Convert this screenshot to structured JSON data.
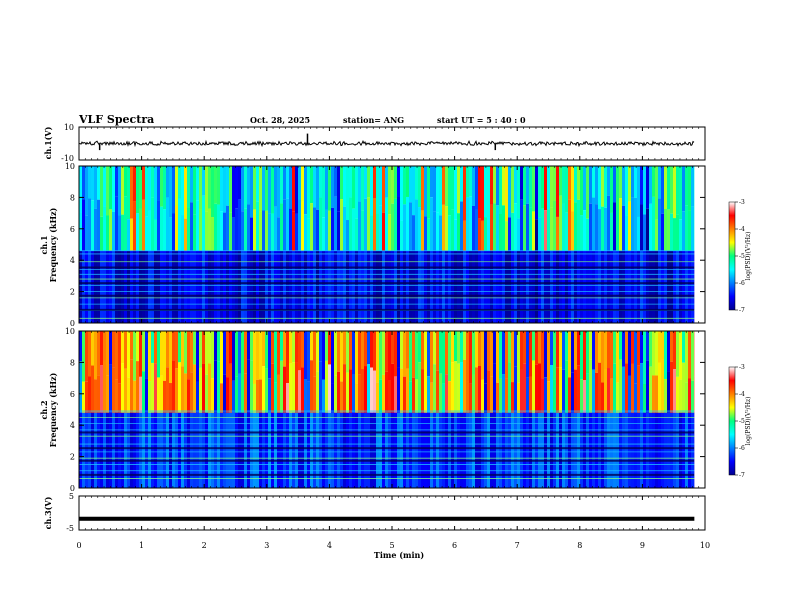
{
  "header": {
    "title": "VLF Spectra",
    "date": "Oct. 28, 2025",
    "station": "station= ANG",
    "start_ut": "start  UT =   5  : 40 : 0"
  },
  "chart_data": {
    "type": "heatmap",
    "x": {
      "label": "Time  (min)",
      "range": [
        0,
        10
      ],
      "ticks": [
        "0",
        "1",
        "2",
        "3",
        "4",
        "5",
        "6",
        "7",
        "8",
        "9",
        "10"
      ],
      "data_end": 9.83
    },
    "panels": [
      {
        "id": "ch1-waveform",
        "type": "line",
        "ylabel": "ch.1(V)",
        "ylim": [
          -10,
          10
        ],
        "ytick_labels": [
          "10",
          "-10"
        ],
        "baseline": 0,
        "noise_amplitude": 1.2,
        "spikes": [
          {
            "t": 0.33,
            "v": -4
          },
          {
            "t": 3.65,
            "v": 6
          },
          {
            "t": 6.65,
            "v": -4
          }
        ]
      },
      {
        "id": "ch1-spectrogram",
        "type": "heatmap",
        "ylabel_lines": [
          "ch.1",
          "Frequency  (kHz)"
        ],
        "ylim": [
          0,
          10
        ],
        "ytick_labels": [
          "0",
          "2",
          "4",
          "6",
          "8",
          "10"
        ],
        "colorbar": {
          "label": "log(PSD)(V²/Hz)",
          "range": [
            -7,
            -3
          ],
          "tick_labels": [
            "-3",
            "-4",
            "-5",
            "-6",
            "-7"
          ]
        },
        "upper_band_level": -5.2,
        "lower_band_level": -6.6,
        "band_edge_khz": 4.6,
        "hlines_khz": [
          0.3,
          0.8,
          1.2,
          1.6,
          2.0,
          2.4,
          2.8,
          3.1,
          3.4,
          3.9,
          4.4,
          4.6
        ]
      },
      {
        "id": "ch2-spectrogram",
        "type": "heatmap",
        "ylabel_lines": [
          "ch.2",
          "Frequency  (kHz)"
        ],
        "ylim": [
          0,
          10
        ],
        "ytick_labels": [
          "0",
          "2",
          "4",
          "6",
          "8",
          "10"
        ],
        "colorbar": {
          "label": "log(PSD)(V²/Hz)",
          "range": [
            -7,
            -3
          ],
          "tick_labels": [
            "-3",
            "-4",
            "-5",
            "-6",
            "-7"
          ]
        },
        "upper_band_level": -4.4,
        "lower_band_level": -6.3,
        "band_edge_khz": 4.8,
        "hlines_khz": [
          0.6,
          1.1,
          1.5,
          1.9,
          2.3,
          2.8,
          3.3,
          3.7,
          4.1,
          4.5,
          4.9
        ]
      },
      {
        "id": "ch3-waveform",
        "type": "line",
        "ylabel": "ch.3(V)",
        "ylim": [
          -5,
          5
        ],
        "ytick_labels": [
          "5",
          "-5"
        ],
        "baseline": -1.4,
        "noise_amplitude": 0.3
      }
    ]
  }
}
